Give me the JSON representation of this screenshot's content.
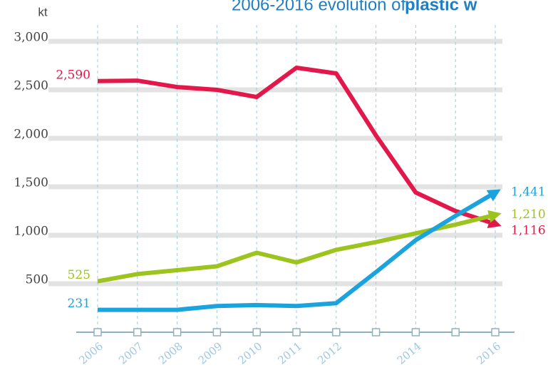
{
  "chart_data": {
    "type": "line",
    "title": "2006-2016 evolution of",
    "title_bold": "plastic w",
    "y_label": "kt",
    "categories": [
      "2006",
      "2007",
      "2008",
      "2009",
      "2010",
      "2011",
      "2012",
      null,
      "2014",
      null,
      "2016"
    ],
    "series": [
      {
        "name": "red",
        "color": "#e2184b",
        "values": [
          2590,
          2595,
          2529,
          2500,
          2426,
          2728,
          2669,
          2029,
          1441,
          1250,
          1116
        ],
        "value_labels": [
          "2,590",
          null,
          null,
          null,
          null,
          null,
          null,
          null,
          null,
          null,
          "1,116"
        ]
      },
      {
        "name": "green",
        "color": "#9dc41e",
        "values": [
          525,
          600,
          640,
          680,
          820,
          720,
          850,
          930,
          1020,
          1110,
          1210
        ],
        "value_labels": [
          "525",
          null,
          null,
          null,
          null,
          null,
          null,
          null,
          null,
          null,
          "1,210"
        ]
      },
      {
        "name": "blue",
        "color": "#1ba3dd",
        "values": [
          231,
          231,
          231,
          270,
          280,
          270,
          300,
          620,
          950,
          1200,
          1441
        ],
        "value_labels": [
          "231",
          null,
          null,
          null,
          null,
          null,
          null,
          null,
          null,
          null,
          "1,441"
        ]
      }
    ],
    "ylim": [
      0,
      3000
    ],
    "yticks": [
      {
        "value": 500,
        "label": "500"
      },
      {
        "value": 1000,
        "label": "1,000"
      },
      {
        "value": 1500,
        "label": "1,500"
      },
      {
        "value": 2000,
        "label": "2,000"
      },
      {
        "value": 2500,
        "label": "2,500"
      },
      {
        "value": 3000,
        "label": "3,000"
      }
    ],
    "grid": true
  }
}
